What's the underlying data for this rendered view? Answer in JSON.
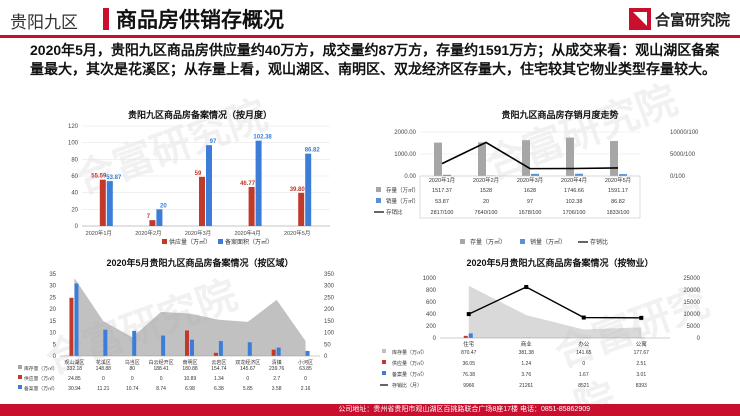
{
  "header": {
    "region": "贵阳九区",
    "title": "商品房供销存概况",
    "logo_text": "合富研究院",
    "accent": "#c8102e"
  },
  "summary": "2020年5月，贵阳九区商品房供应量约40万方，成交量约87万方，存量约1591万方；从成交来看：观山湖区备案量最大，其次是花溪区；从存量上看，观山湖区、南明区、双龙经济区存量大，住宅较其它物业类型存量较大。",
  "footer": "公司地址：贵州省贵阳市观山湖区百挑路联合广场8座17楼   电话：0851-85862909",
  "watermark": "合富研究院",
  "chart_data": [
    {
      "id": "monthly-filing",
      "type": "bar",
      "title": "贵阳九区商品房备案情况（按月度）",
      "categories": [
        "2020年1月",
        "2020年2月",
        "2020年3月",
        "2020年4月",
        "2020年5月"
      ],
      "ylim": [
        0,
        120
      ],
      "yticks": [
        0,
        20,
        40,
        60,
        80,
        100,
        120
      ],
      "series": [
        {
          "name": "供应量（万㎡）",
          "color": "#c0392b",
          "values": [
            55.59,
            7,
            59,
            46.77,
            39.8
          ],
          "labels": [
            "55.59",
            "7",
            "59",
            "46.77",
            "39.80"
          ]
        },
        {
          "name": "备案面积（万㎡）",
          "color": "#3b7dd8",
          "values": [
            53.87,
            20,
            97,
            102.38,
            86.82
          ],
          "labels": [
            "53.87",
            "20",
            "97",
            "102.38",
            "86.82"
          ]
        }
      ]
    },
    {
      "id": "stock-trend",
      "type": "bar",
      "title": "贵阳九区商品房存销月度走势",
      "categories": [
        "2020年1月",
        "2020年2月",
        "2020年3月",
        "2020年4月",
        "2020年5月"
      ],
      "ylim_left": [
        0,
        2000
      ],
      "yticks_left": [
        "0.00",
        "1000.00",
        "2000.00"
      ],
      "ylim_right": [
        0,
        10000
      ],
      "yticks_right": [
        "0/100",
        "5000/100",
        "10000/100"
      ],
      "series": [
        {
          "name": "存量（万㎡）",
          "color": "#a6a6a6",
          "values": [
            1517.37,
            1528,
            1628,
            1746.66,
            1591.17
          ],
          "labels": [
            "1517.37",
            "1528",
            "1628",
            "1746.66",
            "1591.17"
          ]
        },
        {
          "name": "销量（万㎡）",
          "color": "#5b8fd6",
          "values": [
            53.87,
            20,
            97,
            102.38,
            86.82
          ],
          "labels": [
            "53.87",
            "20",
            "97",
            "102.38",
            "86.82"
          ]
        },
        {
          "name": "存销比",
          "color": "#000000",
          "type": "line",
          "values": [
            2817,
            7640,
            1678,
            1706,
            1833
          ],
          "labels": [
            "2817/100",
            "7640/100",
            "1678/100",
            "1706/100",
            "1833/100"
          ]
        }
      ]
    },
    {
      "id": "district-filing",
      "type": "bar",
      "title": "2020年5月贵阳九区商品房备案情况（按区域）",
      "categories": [
        "观山湖区",
        "花溪区",
        "乌当区",
        "白云经开区",
        "南明区",
        "云岩区",
        "双龙经济区",
        "清镇",
        "小河区"
      ],
      "ylim_left": [
        0,
        35
      ],
      "yticks_left": [
        0,
        5,
        10,
        15,
        20,
        25,
        30,
        35
      ],
      "ylim_right": [
        0,
        350
      ],
      "yticks_right": [
        0,
        50,
        100,
        150,
        200,
        250,
        300,
        350
      ],
      "series": [
        {
          "name": "库存量（万㎡）",
          "color": "#a6a6a6",
          "type": "area",
          "values": [
            332.18,
            148.88,
            80,
            188.41,
            180.88,
            154.74,
            145.67,
            239.76,
            63.85
          ],
          "labels": [
            "332.18",
            "148.88",
            "80",
            "188.41",
            "180.88",
            "154.74",
            "145.67",
            "239.76",
            "63.85"
          ]
        },
        {
          "name": "供应量（万㎡）",
          "color": "#c0392b",
          "values": [
            24.85,
            0,
            0,
            0,
            10.89,
            1.34,
            0,
            2.7,
            0
          ],
          "labels": [
            "24.85",
            "0",
            "0",
            "0",
            "10.89",
            "1.34",
            "0",
            "2.7",
            "0"
          ]
        },
        {
          "name": "备案量（万㎡）",
          "color": "#3b7dd8",
          "values": [
            30.94,
            11.21,
            10.74,
            8.74,
            6.98,
            6.38,
            5.85,
            3.58,
            2.16
          ],
          "labels": [
            "30.94",
            "11.21",
            "10.74",
            "8.74",
            "6.98",
            "6.38",
            "5.85",
            "3.58",
            "2.16"
          ]
        }
      ]
    },
    {
      "id": "property-filing",
      "type": "bar",
      "title": "2020年5月贵阳九区商品房备案情况（按物业）",
      "categories": [
        "住宅",
        "商业",
        "办公",
        "公寓"
      ],
      "ylim_left": [
        0,
        1000
      ],
      "yticks_left": [
        0,
        200,
        400,
        600,
        800,
        1000
      ],
      "ylim_right": [
        0,
        25000
      ],
      "yticks_right": [
        0,
        5000,
        10000,
        15000,
        20000,
        25000
      ],
      "series": [
        {
          "name": "库存量（万㎡）",
          "color": "#bfbfbf",
          "type": "area",
          "values": [
            870.47,
            381.38,
            141.65,
            177.67
          ],
          "labels": [
            "870.47",
            "381.38",
            "141.65",
            "177.67"
          ]
        },
        {
          "name": "供应量（万㎡）",
          "color": "#c0392b",
          "values": [
            36.05,
            1.24,
            0,
            2.51
          ],
          "labels": [
            "36.05",
            "1.24",
            "0",
            "2.51"
          ]
        },
        {
          "name": "备案量（万㎡）",
          "color": "#3b7dd8",
          "values": [
            76.38,
            3.76,
            1.67,
            3.01
          ],
          "labels": [
            "76.38",
            "3.76",
            "1.67",
            "3.01"
          ]
        },
        {
          "name": "存销比（月）",
          "color": "#000000",
          "type": "line",
          "values": [
            9966,
            21261,
            8521,
            8393
          ],
          "labels": [
            "9966",
            "21261",
            "8521",
            "8393"
          ]
        }
      ]
    }
  ]
}
